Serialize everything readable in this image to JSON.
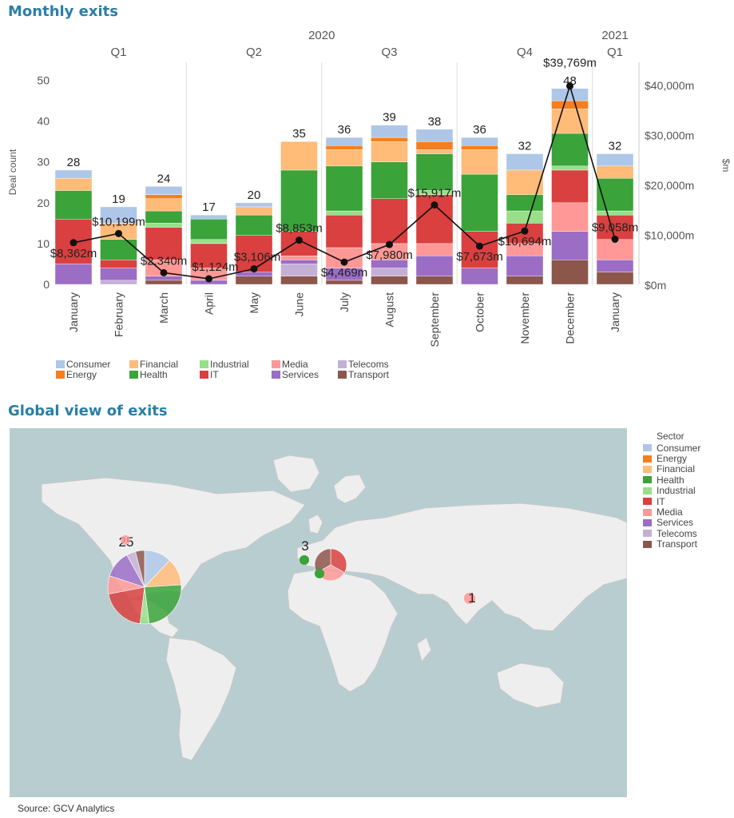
{
  "titles": {
    "monthly": "Monthly exits",
    "global": "Global view of exits"
  },
  "source": "Source: GCV Analytics",
  "colors": {
    "Consumer": "#aec7e8",
    "Energy": "#f57f20",
    "Financial": "#ffbb78",
    "Health": "#3aa33a",
    "Industrial": "#98df8a",
    "IT": "#d9403f",
    "Media": "#ff9896",
    "Services": "#9b6dc5",
    "Telecoms": "#c5b0d5",
    "Transport": "#8c564b"
  },
  "chart_data": [
    {
      "type": "bar",
      "title": "Monthly exits",
      "stacked": true,
      "ylabel": "Deal count",
      "y2label": "$m",
      "ylim": [
        0,
        55
      ],
      "y2lim": [
        0,
        45000
      ],
      "yticks": [
        "0",
        "10",
        "20",
        "30",
        "40",
        "50"
      ],
      "y2ticks": [
        "$0m",
        "$10,000m",
        "$20,000m",
        "$30,000m",
        "$40,000m"
      ],
      "year_labels": [
        {
          "text": "2020",
          "months": [
            0,
            11
          ]
        },
        {
          "text": "2021",
          "months": [
            12,
            12
          ]
        }
      ],
      "quarter_labels": [
        {
          "text": "Q1",
          "months": [
            0,
            2
          ]
        },
        {
          "text": "Q2",
          "months": [
            3,
            5
          ]
        },
        {
          "text": "Q3",
          "months": [
            6,
            8
          ]
        },
        {
          "text": "Q4",
          "months": [
            9,
            11
          ]
        },
        {
          "text": "Q1",
          "months": [
            12,
            12
          ]
        }
      ],
      "categories": [
        "January",
        "February",
        "March",
        "April",
        "May",
        "June",
        "July",
        "August",
        "September",
        "October",
        "November",
        "December",
        "January"
      ],
      "series": [
        {
          "name": "Transport",
          "values": [
            0,
            0,
            1,
            0,
            2,
            2,
            1,
            2,
            2,
            0,
            2,
            6,
            3
          ]
        },
        {
          "name": "Telecoms",
          "values": [
            0,
            1,
            0,
            0,
            0,
            3,
            0,
            2,
            0,
            0,
            0,
            0,
            0
          ]
        },
        {
          "name": "Services",
          "values": [
            5,
            3,
            1,
            1,
            1,
            1,
            3,
            2,
            5,
            4,
            5,
            7,
            3
          ]
        },
        {
          "name": "Media",
          "values": [
            0,
            0,
            4,
            3,
            0,
            1,
            5,
            4,
            3,
            0,
            3,
            7,
            5
          ]
        },
        {
          "name": "IT",
          "values": [
            11,
            2,
            8,
            6,
            9,
            6,
            8,
            11,
            12,
            9,
            5,
            8,
            6
          ]
        },
        {
          "name": "Industrial",
          "values": [
            0,
            0,
            1,
            1,
            0,
            0,
            1,
            0,
            1,
            0,
            3,
            1,
            1
          ]
        },
        {
          "name": "Health",
          "values": [
            7,
            5,
            3,
            5,
            5,
            15,
            11,
            9,
            9,
            14,
            4,
            8,
            8
          ]
        },
        {
          "name": "Financial",
          "values": [
            3,
            4,
            3,
            0,
            2,
            7,
            4,
            5,
            1,
            6,
            6,
            6,
            3
          ]
        },
        {
          "name": "Energy",
          "values": [
            0,
            0,
            1,
            0,
            0,
            0,
            1,
            1,
            2,
            1,
            0,
            2,
            0
          ]
        },
        {
          "name": "Consumer",
          "values": [
            2,
            4,
            2,
            1,
            1,
            0,
            2,
            3,
            3,
            2,
            4,
            3,
            3
          ]
        }
      ],
      "totals": [
        "28",
        "19",
        "24",
        "17",
        "20",
        "35",
        "36",
        "39",
        "38",
        "36",
        "32",
        "48",
        "32"
      ],
      "line": {
        "axis": "secondary",
        "values": [
          8362,
          10199,
          2340,
          1124,
          3106,
          8853,
          4469,
          7980,
          15917,
          7673,
          10694,
          39769,
          9058
        ],
        "labels": [
          "$8,362m",
          "$10,199m",
          "$2,340m",
          "$1,124m",
          "$3,106m",
          "$8,853m",
          "$4,469m",
          "$7,980m",
          "$15,917m",
          "$7,673m",
          "$10,694m",
          "$39,769m",
          "$9,058m"
        ]
      },
      "legend": {
        "placement": "bottom-left",
        "items": [
          "Consumer",
          "Energy",
          "Financial",
          "Health",
          "Industrial",
          "IT",
          "Media",
          "Services",
          "Telecoms",
          "Transport"
        ]
      }
    },
    {
      "type": "pie",
      "title": "Global view of exits",
      "legend": {
        "title": "Sector",
        "items": [
          "Consumer",
          "Energy",
          "Financial",
          "Health",
          "Industrial",
          "IT",
          "Media",
          "Services",
          "Telecoms",
          "Transport"
        ]
      },
      "regions": [
        {
          "count_label": "25",
          "slices": [
            {
              "name": "Consumer",
              "value": 3
            },
            {
              "name": "Financial",
              "value": 3
            },
            {
              "name": "Health",
              "value": 6
            },
            {
              "name": "Industrial",
              "value": 1
            },
            {
              "name": "IT",
              "value": 5
            },
            {
              "name": "Media",
              "value": 2
            },
            {
              "name": "Services",
              "value": 3
            },
            {
              "name": "Telecoms",
              "value": 1
            },
            {
              "name": "Transport",
              "value": 1
            }
          ]
        },
        {
          "count_label": "3",
          "slices": [
            {
              "name": "IT",
              "value": 1
            },
            {
              "name": "Media",
              "value": 1
            },
            {
              "name": "Transport",
              "value": 1
            }
          ]
        },
        {
          "count_label": "1",
          "slices": [
            {
              "name": "Media",
              "value": 1
            }
          ]
        }
      ],
      "extra_markers": [
        {
          "name": "Health"
        },
        {
          "name": "Health"
        }
      ]
    }
  ]
}
